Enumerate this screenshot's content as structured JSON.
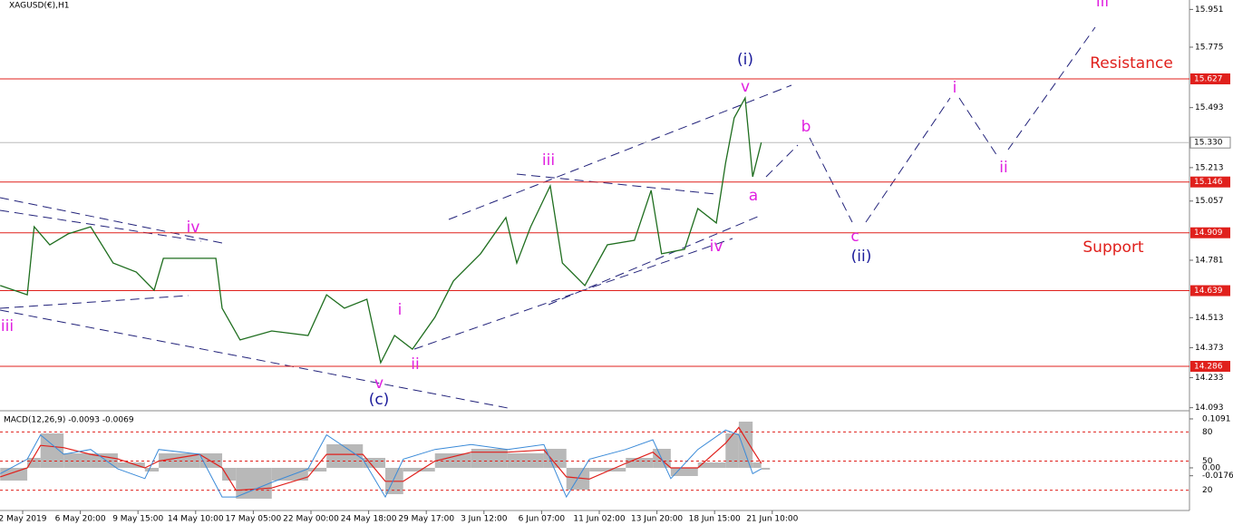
{
  "chart_data": [
    {
      "type": "line",
      "title": "XAGUSD(€),H1",
      "color": "#1f6e1f",
      "x": [
        -0.39,
        0.08,
        0.2,
        0.47,
        0.79,
        1.18,
        1.57,
        1.97,
        2.28,
        2.44,
        2.91,
        3.35,
        3.46,
        3.77,
        4.32,
        4.95,
        5.27,
        5.58,
        5.97,
        6.21,
        6.45,
        6.76,
        7.15,
        7.47,
        7.94,
        8.38,
        8.57,
        8.81,
        9.15,
        9.36,
        9.75,
        10.14,
        10.61,
        10.9,
        11.08,
        11.48,
        11.71,
        12.03,
        12.19,
        12.34,
        12.53,
        12.66,
        12.81
      ],
      "values": [
        14.663,
        14.62,
        14.937,
        14.853,
        14.904,
        14.937,
        14.768,
        14.726,
        14.641,
        14.79,
        14.79,
        14.79,
        14.557,
        14.409,
        14.451,
        14.43,
        14.62,
        14.557,
        14.599,
        14.303,
        14.43,
        14.366,
        14.515,
        14.684,
        14.811,
        14.98,
        14.768,
        14.937,
        15.128,
        14.768,
        14.663,
        14.853,
        14.874,
        15.107,
        14.811,
        14.832,
        15.022,
        14.955,
        15.234,
        15.445,
        15.538,
        15.17,
        15.33
      ],
      "xlim": [
        -0.393,
        20.236
      ],
      "ylim": [
        14.083,
        15.995
      ],
      "yticks": [
        15.951,
        15.775,
        15.493,
        15.213,
        15.057,
        14.781,
        14.513,
        14.373,
        14.233,
        14.093
      ],
      "levels": [
        15.627,
        15.146,
        14.909,
        14.639,
        14.286
      ],
      "level_color": "#e0201c",
      "current_price": 15.33,
      "current_price_label": "15.330",
      "annotations": [
        {
          "text": "(i)",
          "color": "#1a1a9a"
        },
        {
          "text": "v",
          "color": "#e020e0"
        },
        {
          "text": "b",
          "color": "#e020e0"
        },
        {
          "text": "a",
          "color": "#e020e0"
        },
        {
          "text": "c",
          "color": "#e020e0"
        },
        {
          "text": "(ii)",
          "color": "#1a1a9a"
        },
        {
          "text": "i",
          "color": "#e020e0"
        },
        {
          "text": "ii",
          "color": "#e020e0"
        },
        {
          "text": "iii",
          "color": "#e020e0"
        },
        {
          "text": "Resistance",
          "color": "#e0201c"
        },
        {
          "text": "Support",
          "color": "#e0201c"
        },
        {
          "text": "iii",
          "color": "#e020e0"
        },
        {
          "text": "iv",
          "color": "#e020e0"
        },
        {
          "text": "iv",
          "color": "#e020e0"
        },
        {
          "text": "iii",
          "color": "#e020e0"
        },
        {
          "text": "i",
          "color": "#e020e0"
        },
        {
          "text": "ii",
          "color": "#e020e0"
        },
        {
          "text": "v",
          "color": "#e020e0"
        },
        {
          "text": "(c)",
          "color": "#1a1a9a"
        }
      ]
    },
    {
      "type": "macd",
      "title": "MACD(12,26,9) -0.0093 -0.0069",
      "x": [
        -0.39,
        0.08,
        0.31,
        0.71,
        1.18,
        1.65,
        2.12,
        2.36,
        3.07,
        3.46,
        3.7,
        4.32,
        4.95,
        5.27,
        5.9,
        6.29,
        6.6,
        7.15,
        7.78,
        8.41,
        9.04,
        9.43,
        9.83,
        10.46,
        10.93,
        11.24,
        11.71,
        12.19,
        12.42,
        12.66,
        12.81
      ],
      "xlim": [
        -0.393,
        20.236
      ],
      "xticks": [
        {
          "value": 0,
          "label": "2 May 2019"
        },
        {
          "value": 1,
          "label": "6 May 20:00"
        },
        {
          "value": 2,
          "label": "9 May 15:00"
        },
        {
          "value": 3,
          "label": "14 May 10:00"
        },
        {
          "value": 4,
          "label": "17 May 05:00"
        },
        {
          "value": 5,
          "label": "22 May 00:00"
        },
        {
          "value": 6,
          "label": "24 May 18:00"
        },
        {
          "value": 7,
          "label": "29 May 17:00"
        },
        {
          "value": 8,
          "label": "3 Jun 12:00"
        },
        {
          "value": 9,
          "label": "6 Jun 07:00"
        },
        {
          "value": 10,
          "label": "11 Jun 02:00"
        },
        {
          "value": 11,
          "label": "13 Jun 20:00"
        },
        {
          "value": 12,
          "label": "18 Jun 15:00"
        },
        {
          "value": 13,
          "label": "21 Jun 10:00"
        }
      ],
      "ylim": [
        -0.093,
        0.1232
      ],
      "yticks": [
        0.1091,
        {
          "value": 0,
          "label": "0.00"
        },
        -0.0176
      ],
      "y2lim": [
        0,
        100
      ],
      "y2ticks": [
        80,
        50,
        20
      ],
      "histogram": {
        "color": "#b8b8b8",
        "values": [
          -0.0283,
          0.0222,
          0.0768,
          0.0323,
          0.0323,
          0.0121,
          -0.0081,
          0.0323,
          0.0323,
          -0.0283,
          -0.0687,
          -0.0283,
          -0.0081,
          0.0525,
          0.0222,
          -0.0586,
          -0.0081,
          0.0323,
          0.0424,
          0.0323,
          0.0424,
          -0.0485,
          -0.0081,
          0.0222,
          0.0424,
          -0.0182,
          0.0121,
          0.0768,
          0.103,
          0.0121,
          -0.004
        ]
      },
      "signal": {
        "color": "#e0201c",
        "values": [
          -0.02,
          0,
          0.05,
          0.045,
          0.03,
          0.02,
          0,
          0.015,
          0.03,
          0,
          -0.05,
          -0.045,
          -0.02,
          0.03,
          0.03,
          -0.03,
          -0.03,
          0.015,
          0.035,
          0.035,
          0.04,
          -0.02,
          -0.025,
          0.01,
          0.035,
          0,
          0,
          0.055,
          0.09,
          0.04,
          0.01
        ]
      },
      "stochastic": {
        "color": "#3a8ad8",
        "axis": "y2",
        "values": [
          37,
          52,
          77,
          57,
          62,
          42,
          32,
          62,
          57,
          13,
          13,
          28,
          42,
          77,
          52,
          13,
          52,
          62,
          67,
          62,
          67,
          13,
          52,
          62,
          72,
          32,
          62,
          82,
          77,
          37,
          42
        ]
      }
    }
  ]
}
